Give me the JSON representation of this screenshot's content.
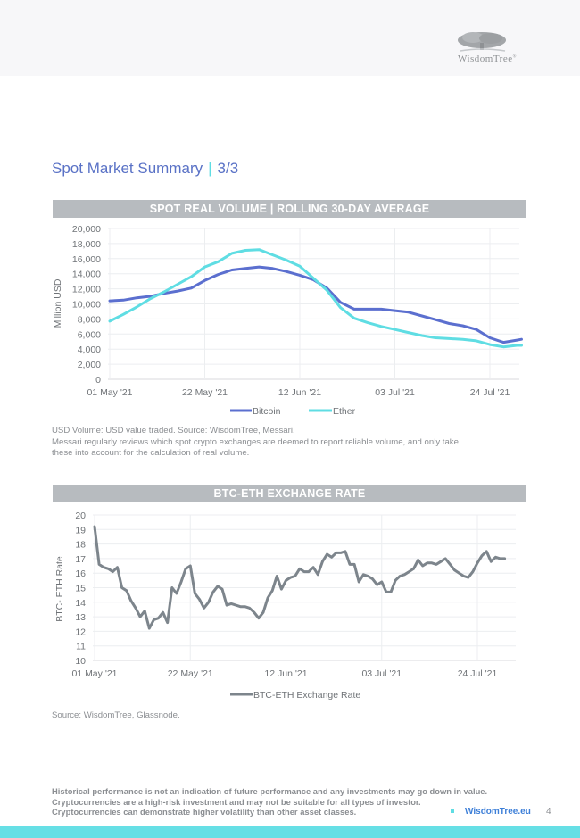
{
  "header": {
    "logo_text": "WisdomTree",
    "logo_mark": "®"
  },
  "page": {
    "title": "Spot Market Summary",
    "separator": "|",
    "page_of": "3/3"
  },
  "colors": {
    "bitcoin": "#5b6fcf",
    "ether": "#5fdde3",
    "btc_eth": "#7d858c",
    "title": "#5a72c6",
    "accent": "#66dfe5",
    "bar_bg": "#b7bbbf"
  },
  "chart1": {
    "section_title": "SPOT REAL VOLUME | ROLLING 30-DAY AVERAGE"
  },
  "chart1_notes": {
    "line1": "USD Volume: USD value traded. Source: WisdomTree, Messari.",
    "line2": "Messari regularly reviews which spot crypto exchanges are deemed to report reliable volume, and only take",
    "line3": "these into account for the calculation of real volume."
  },
  "chart2": {
    "section_title": "BTC-ETH EXCHANGE RATE"
  },
  "chart2_notes": {
    "line1": "Source: WisdomTree, Glassnode."
  },
  "footer": {
    "line1": "Historical performance is not an indication of future performance and any investments may go down in value.",
    "line2": "Cryptocurrencies are a high-risk investment and may not be suitable for all types of investor.",
    "line3": "Cryptocurrencies can demonstrate higher volatility than other asset classes.",
    "link": "WisdomTree.eu",
    "page_number": "4"
  },
  "chart_data": [
    {
      "type": "line",
      "title": "SPOT REAL VOLUME | ROLLING 30-DAY AVERAGE",
      "xlabel": "",
      "ylabel": "Million USD",
      "ylim": [
        0,
        20000
      ],
      "yticks": [
        0,
        2000,
        4000,
        6000,
        8000,
        10000,
        12000,
        14000,
        16000,
        18000,
        20000
      ],
      "ytick_labels": [
        "0",
        "2,000",
        "4,000",
        "6,000",
        "8,000",
        "10,000",
        "12,000",
        "14,000",
        "16,000",
        "18,000",
        "20,000"
      ],
      "xlim_days": [
        0,
        91
      ],
      "xticks_days": [
        0,
        21,
        42,
        63,
        84
      ],
      "xtick_labels": [
        "01 May '21",
        "22 May '21",
        "12 Jun '21",
        "03 Jul '21",
        "24 Jul '21"
      ],
      "grid": true,
      "legend": "bottom-center",
      "x_days": [
        0,
        3,
        6,
        9,
        12,
        15,
        18,
        21,
        24,
        27,
        30,
        33,
        36,
        39,
        42,
        45,
        48,
        51,
        54,
        57,
        60,
        63,
        66,
        69,
        72,
        75,
        78,
        81,
        84,
        87,
        90,
        91
      ],
      "series": [
        {
          "name": "Bitcoin",
          "values": [
            10400,
            10500,
            10800,
            11000,
            11400,
            11700,
            12100,
            13100,
            13900,
            14500,
            14700,
            14900,
            14700,
            14300,
            13800,
            13200,
            12100,
            10200,
            9300,
            9300,
            9300,
            9100,
            8900,
            8400,
            7900,
            7400,
            7100,
            6600,
            5500,
            4900,
            5200,
            5300
          ]
        },
        {
          "name": "Ether",
          "values": [
            7700,
            8600,
            9600,
            10700,
            11600,
            12600,
            13600,
            14900,
            15600,
            16700,
            17100,
            17200,
            16500,
            15800,
            15000,
            13400,
            11800,
            9500,
            8100,
            7500,
            7000,
            6600,
            6200,
            5800,
            5500,
            5400,
            5300,
            5100,
            4600,
            4300,
            4500,
            4500
          ]
        }
      ]
    },
    {
      "type": "line",
      "title": "BTC-ETH EXCHANGE RATE",
      "xlabel": "",
      "ylabel": "BTC- ETH Rate",
      "ylim": [
        10,
        20
      ],
      "yticks": [
        10,
        11,
        12,
        13,
        14,
        15,
        16,
        17,
        18,
        19,
        20
      ],
      "ytick_labels": [
        "10",
        "11",
        "12",
        "13",
        "14",
        "15",
        "16",
        "17",
        "18",
        "19",
        "20"
      ],
      "xlim_days": [
        0,
        91
      ],
      "xticks_days": [
        0,
        21,
        42,
        63,
        84
      ],
      "xtick_labels": [
        "01 May '21",
        "22 May '21",
        "12 Jun '21",
        "03 Jul '21",
        "24 Jul '21"
      ],
      "grid": true,
      "legend": "bottom-center",
      "x_days": [
        0,
        1,
        2,
        3,
        4,
        5,
        6,
        7,
        8,
        9,
        10,
        11,
        12,
        13,
        14,
        15,
        16,
        17,
        18,
        19,
        20,
        21,
        22,
        23,
        24,
        25,
        26,
        27,
        28,
        29,
        30,
        31,
        32,
        33,
        34,
        35,
        36,
        37,
        38,
        39,
        40,
        41,
        42,
        43,
        44,
        45,
        46,
        47,
        48,
        49,
        50,
        51,
        52,
        53,
        54,
        55,
        56,
        57,
        58,
        59,
        60,
        61,
        62,
        63,
        64,
        65,
        66,
        67,
        68,
        69,
        70,
        71,
        72,
        73,
        74,
        75,
        76,
        77,
        78,
        79,
        80,
        81,
        82,
        83,
        84,
        85,
        86,
        87,
        88,
        89,
        90
      ],
      "series": [
        {
          "name": "BTC-ETH Exchange Rate",
          "values": [
            19.2,
            16.6,
            16.4,
            16.3,
            16.1,
            16.4,
            15.0,
            14.8,
            14.1,
            13.6,
            13.0,
            13.4,
            12.2,
            12.8,
            12.9,
            13.3,
            12.6,
            15.0,
            14.6,
            15.4,
            16.3,
            16.5,
            14.6,
            14.2,
            13.6,
            14.0,
            14.7,
            15.1,
            14.9,
            13.8,
            13.9,
            13.8,
            13.7,
            13.7,
            13.6,
            13.3,
            12.9,
            13.3,
            14.3,
            14.8,
            15.8,
            14.9,
            15.5,
            15.7,
            15.8,
            16.3,
            16.1,
            16.1,
            16.4,
            15.9,
            16.8,
            17.3,
            17.1,
            17.4,
            17.4,
            17.5,
            16.6,
            16.6,
            15.4,
            15.9,
            15.8,
            15.6,
            15.2,
            15.4,
            14.7,
            14.7,
            15.5,
            15.8,
            15.9,
            16.1,
            16.3,
            16.9,
            16.5,
            16.7,
            16.7,
            16.6,
            16.8,
            17.0,
            16.6,
            16.2,
            16.0,
            15.8,
            15.7,
            16.1,
            16.7,
            17.2,
            17.5,
            16.8,
            17.1,
            17.0,
            17.0
          ]
        }
      ]
    }
  ]
}
